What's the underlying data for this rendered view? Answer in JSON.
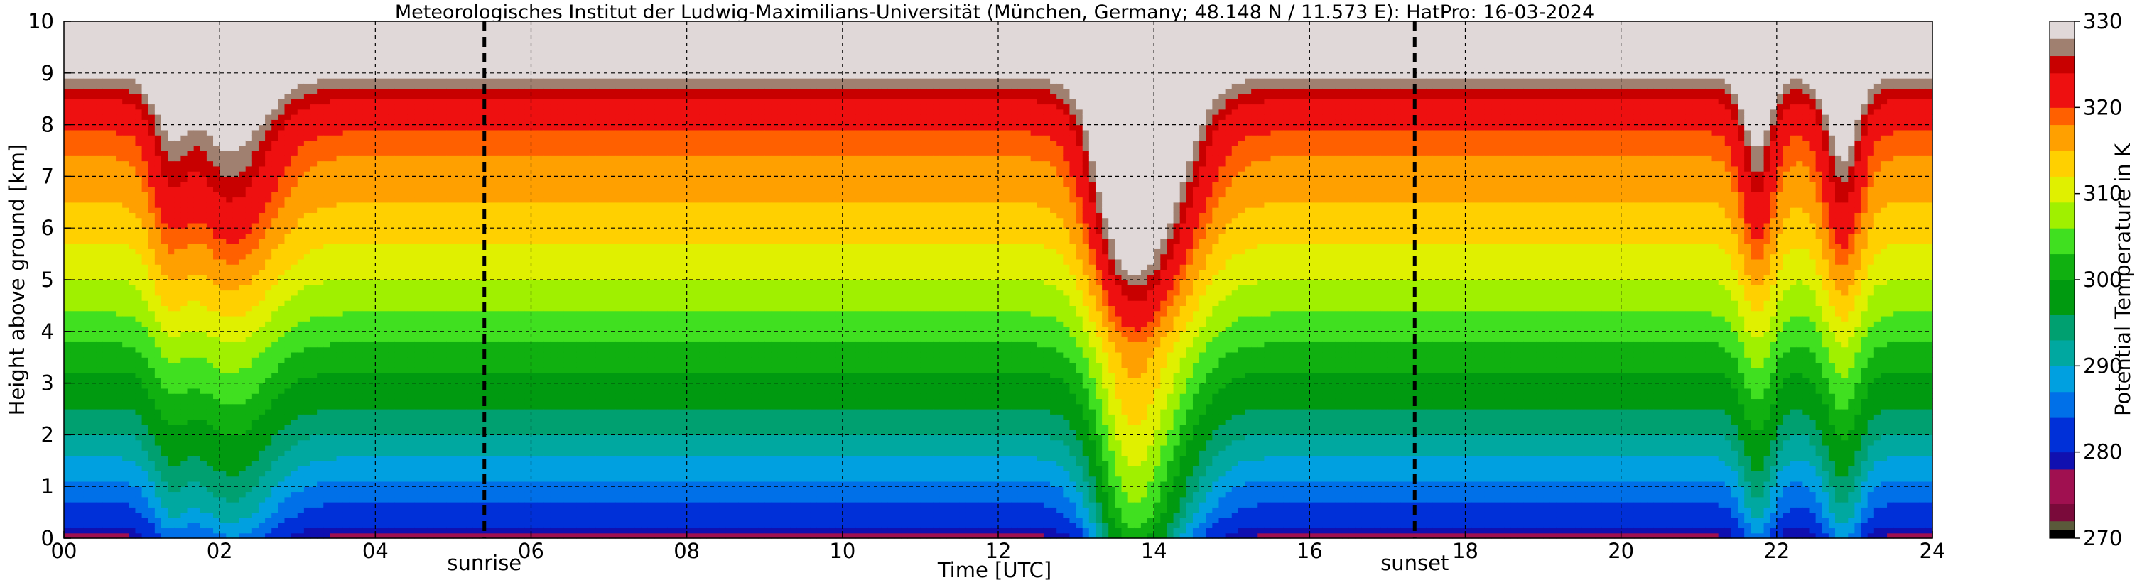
{
  "chart_data": {
    "type": "heatmap",
    "title": "Meteorologisches Institut der Ludwig-Maximilians-Universität (München, Germany; 48.148 N / 11.573 E):    HatPro: 16-03-2024",
    "xlabel": "Time [UTC]",
    "ylabel": "Height above ground [km]",
    "xlim": [
      0,
      24
    ],
    "ylim": [
      0,
      10
    ],
    "x_ticks": [
      0,
      2,
      4,
      6,
      8,
      10,
      12,
      14,
      16,
      18,
      20,
      22,
      24
    ],
    "x_tick_labels": [
      "00",
      "02",
      "04",
      "06",
      "08",
      "10",
      "12",
      "14",
      "16",
      "18",
      "20",
      "22",
      "24"
    ],
    "y_ticks": [
      0,
      1,
      2,
      3,
      4,
      5,
      6,
      7,
      8,
      9,
      10
    ],
    "y_tick_labels": [
      "0",
      "1",
      "2",
      "3",
      "4",
      "5",
      "6",
      "7",
      "8",
      "9",
      "10"
    ],
    "grid": true,
    "markers": [
      {
        "label": "sunrise",
        "x": 5.4
      },
      {
        "label": "sunset",
        "x": 17.35
      }
    ],
    "colorbar": {
      "label": "Potential Temperature in K",
      "range": [
        270,
        330
      ],
      "ticks": [
        270,
        280,
        290,
        300,
        310,
        320,
        330
      ],
      "tick_labels": [
        "270",
        "280",
        "290",
        "300",
        "310",
        "320",
        "330"
      ],
      "colors": [
        {
          "from": 270,
          "to": 271,
          "color": "#000000"
        },
        {
          "from": 271,
          "to": 272,
          "color": "#5a5a3a"
        },
        {
          "from": 272,
          "to": 274,
          "color": "#7a0a3a"
        },
        {
          "from": 274,
          "to": 278,
          "color": "#a01050"
        },
        {
          "from": 278,
          "to": 280,
          "color": "#1010b0"
        },
        {
          "from": 280,
          "to": 284,
          "color": "#0030d8"
        },
        {
          "from": 284,
          "to": 287,
          "color": "#0070e8"
        },
        {
          "from": 287,
          "to": 290,
          "color": "#00a0e0"
        },
        {
          "from": 290,
          "to": 293,
          "color": "#00a8a0"
        },
        {
          "from": 293,
          "to": 296,
          "color": "#00a070"
        },
        {
          "from": 296,
          "to": 300,
          "color": "#009a10"
        },
        {
          "from": 300,
          "to": 303,
          "color": "#10b010"
        },
        {
          "from": 303,
          "to": 306,
          "color": "#40e020"
        },
        {
          "from": 306,
          "to": 309,
          "color": "#a0f000"
        },
        {
          "from": 309,
          "to": 312,
          "color": "#e0f000"
        },
        {
          "from": 312,
          "to": 315,
          "color": "#ffd000"
        },
        {
          "from": 315,
          "to": 318,
          "color": "#ffa000"
        },
        {
          "from": 318,
          "to": 320,
          "color": "#ff6000"
        },
        {
          "from": 320,
          "to": 324,
          "color": "#ee1010"
        },
        {
          "from": 324,
          "to": 326,
          "color": "#c80000"
        },
        {
          "from": 326,
          "to": 328,
          "color": "#a08070"
        },
        {
          "from": 328,
          "to": 330,
          "color": "#e0d8d8"
        }
      ]
    },
    "intrusions": [
      {
        "t": 1.35,
        "w": 0.2,
        "s": 0.6
      },
      {
        "t": 2.15,
        "w": 0.45,
        "s": 0.95
      },
      {
        "t": 13.6,
        "w": 0.35,
        "s": 1.4
      },
      {
        "t": 14.05,
        "w": 0.45,
        "s": 1.4
      },
      {
        "t": 21.75,
        "w": 0.18,
        "s": 0.9
      },
      {
        "t": 22.85,
        "w": 0.2,
        "s": 1.0
      }
    ]
  }
}
